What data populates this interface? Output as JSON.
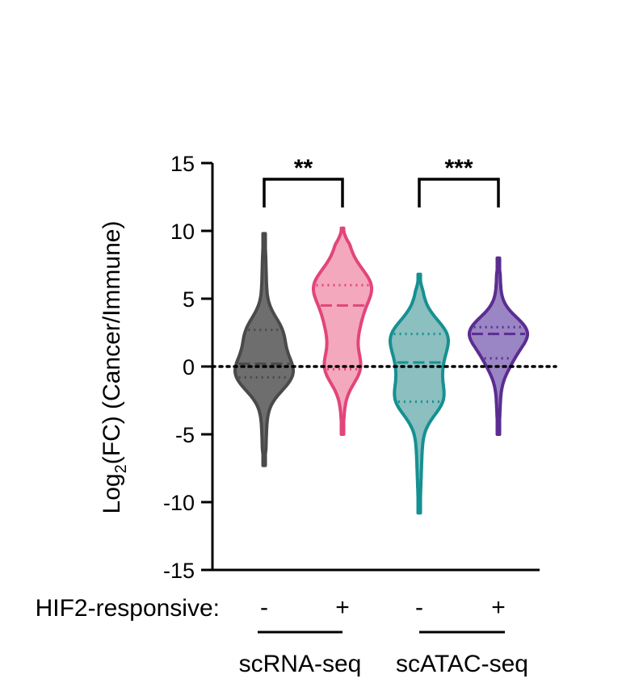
{
  "chart_data": {
    "type": "violin",
    "ylabel_main": "Log",
    "ylabel_sub": "2",
    "ylabel_rest": "(FC) (Cancer/Immune)",
    "ylim": [
      -15,
      15
    ],
    "yticks": [
      "15",
      "10",
      "5",
      "0",
      "-5",
      "-10",
      "-15"
    ],
    "reference_line": 0,
    "row_label": "HIF2-responsive:",
    "violins": [
      {
        "label": "-",
        "group": "scRNA-seq",
        "color": "#4a4a4a",
        "fill": "#6e6e6e",
        "min": -7.3,
        "max": 9.8,
        "median": 0.2,
        "q1": -0.8,
        "q3": 2.7
      },
      {
        "label": "+",
        "group": "scRNA-seq",
        "color": "#e2457a",
        "fill": "#f4a8bd",
        "min": -5.0,
        "max": 10.2,
        "median": 4.5,
        "q1": -0.2,
        "q3": 6.0
      },
      {
        "label": "-",
        "group": "scATAC-seq",
        "color": "#169092",
        "fill": "#8cbfbf",
        "min": -10.8,
        "max": 6.8,
        "median": 0.3,
        "q1": -2.6,
        "q3": 2.4
      },
      {
        "label": "+",
        "group": "scATAC-seq",
        "color": "#5b2d90",
        "fill": "#9a86c4",
        "min": -5.0,
        "max": 8.0,
        "median": 2.4,
        "q1": 0.6,
        "q3": 2.9
      }
    ],
    "groups": [
      "scRNA-seq",
      "scATAC-seq"
    ],
    "significance": [
      "**",
      "***"
    ]
  }
}
